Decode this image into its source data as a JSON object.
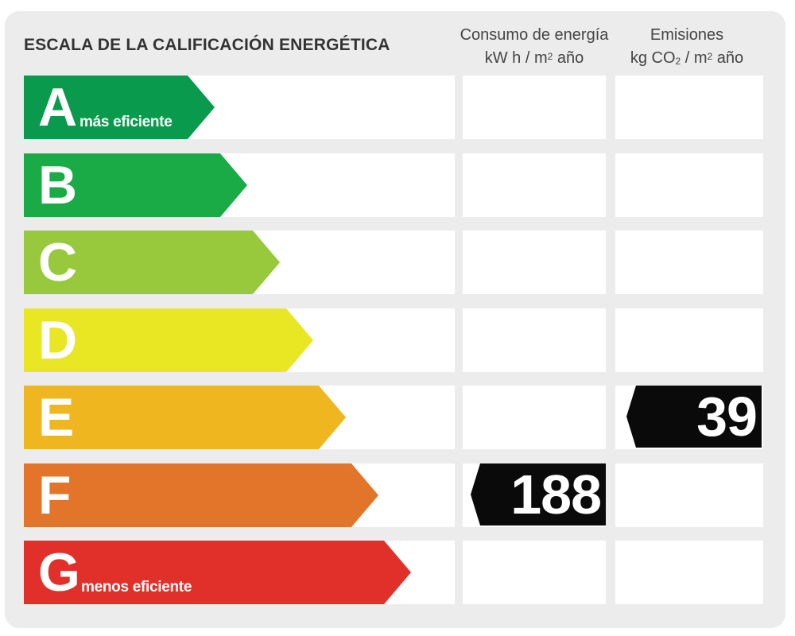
{
  "title": "ESCALA DE LA CALIFICACIÓN ENERGÉTICA",
  "columns": {
    "consumo": {
      "label": "Consumo de energía",
      "unit_prefix": "kW h  / m",
      "unit_sup": "2",
      "unit_suffix": " año"
    },
    "emisiones": {
      "label": "Emisiones",
      "unit_prefix": "kg CO",
      "unit_sub": "2",
      "unit_mid": "  / m",
      "unit_sup": "2",
      "unit_suffix": " año"
    }
  },
  "ratings": [
    {
      "letter": "A",
      "color": "#0a9a4d",
      "note": "más eficiente"
    },
    {
      "letter": "B",
      "color": "#1aab47",
      "note": ""
    },
    {
      "letter": "C",
      "color": "#98c93c",
      "note": ""
    },
    {
      "letter": "D",
      "color": "#e9e624",
      "note": ""
    },
    {
      "letter": "E",
      "color": "#efb61f",
      "note": ""
    },
    {
      "letter": "F",
      "color": "#e2752a",
      "note": ""
    },
    {
      "letter": "G",
      "color": "#e1302a",
      "note": "menos eficiente"
    }
  ],
  "consumo_value": {
    "rating": "F",
    "value": "188"
  },
  "emisiones_value": {
    "rating": "E",
    "value": "39"
  }
}
